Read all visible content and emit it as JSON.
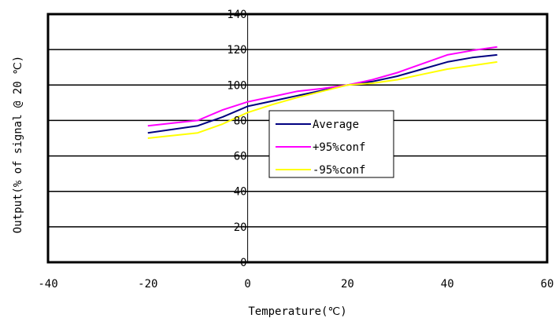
{
  "chart_data": {
    "type": "line",
    "xlabel": "Temperature(℃)",
    "ylabel": "Output(% of signal @ 20 ℃)",
    "xlim": [
      -40,
      60
    ],
    "ylim": [
      0,
      140
    ],
    "xticks": [
      -40,
      -20,
      0,
      20,
      40,
      60
    ],
    "yticks": [
      0,
      20,
      40,
      60,
      80,
      100,
      120,
      140
    ],
    "grid": "horizontal",
    "legend_position": "center",
    "series": [
      {
        "name": "Average",
        "color": "#000080",
        "x": [
          -20,
          -15,
          -10,
          -5,
          0,
          5,
          10,
          15,
          20,
          25,
          30,
          35,
          40,
          45,
          50
        ],
        "y": [
          73,
          75,
          77,
          82,
          88,
          91,
          94,
          97,
          100,
          102,
          105,
          109,
          113,
          115.5,
          117
        ]
      },
      {
        "name": "+95%conf",
        "color": "#ff00ff",
        "x": [
          -20,
          -15,
          -10,
          -5,
          0,
          5,
          10,
          15,
          20,
          25,
          30,
          35,
          40,
          45,
          50
        ],
        "y": [
          77,
          78.5,
          80,
          86,
          90.5,
          93.5,
          96.5,
          98,
          100,
          103,
          107,
          112,
          117,
          119.5,
          121.5
        ]
      },
      {
        "name": "-95%conf",
        "color": "#ffff00",
        "x": [
          -20,
          -15,
          -10,
          -5,
          0,
          5,
          10,
          15,
          20,
          25,
          30,
          35,
          40,
          45,
          50
        ],
        "y": [
          70,
          71.5,
          73,
          78,
          84.5,
          89,
          93,
          96.5,
          100,
          101,
          103,
          106,
          109,
          111,
          113
        ]
      }
    ]
  }
}
